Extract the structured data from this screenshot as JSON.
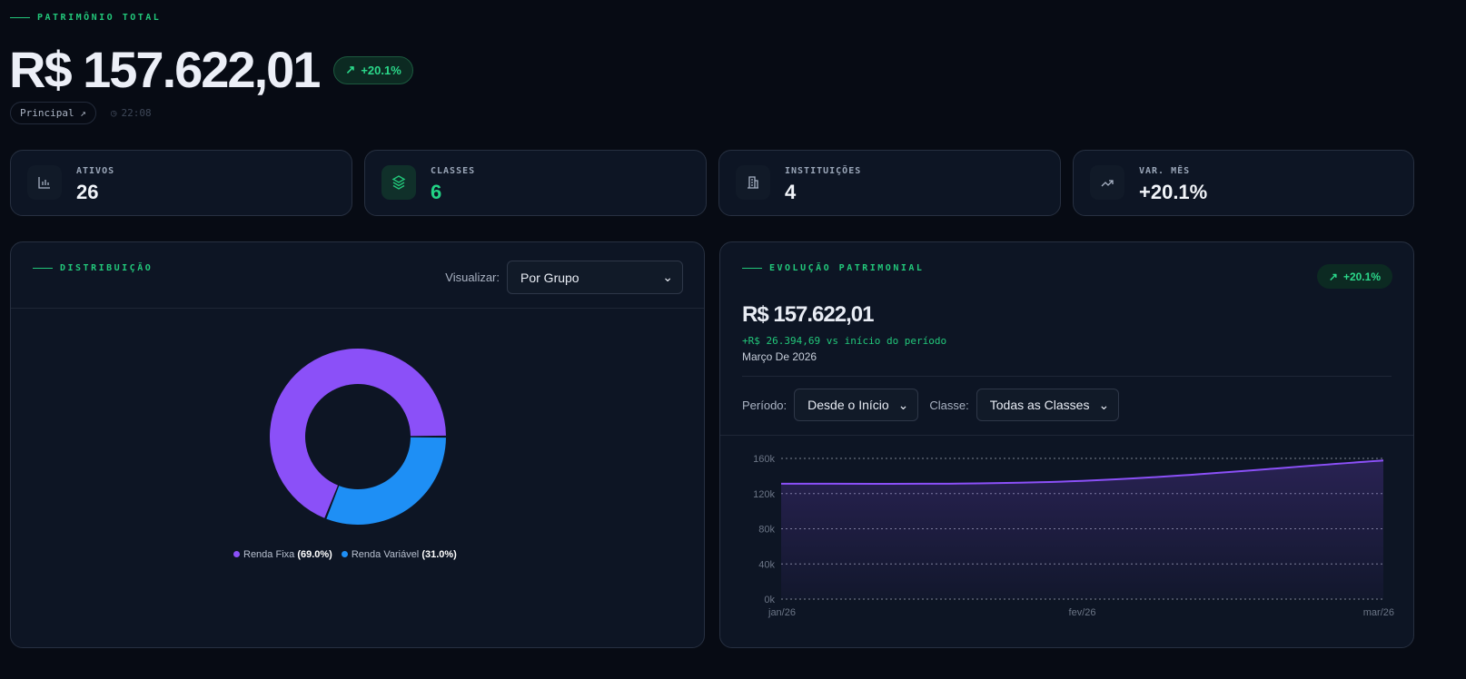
{
  "header": {
    "eyebrow": "PATRIMÔNIO TOTAL",
    "total": "R$ 157.622,01",
    "change": "+20.1%",
    "portfolio": "Principal ↗",
    "time": "22:08"
  },
  "stats": [
    {
      "label": "ATIVOS",
      "value": "26",
      "icon": "bar-chart-icon"
    },
    {
      "label": "CLASSES",
      "value": "6",
      "icon": "layers-icon"
    },
    {
      "label": "INSTITUIÇÕES",
      "value": "4",
      "icon": "building-icon"
    },
    {
      "label": "VAR. MÊS",
      "value": "+20.1%",
      "icon": "trending-up-icon"
    }
  ],
  "distribution": {
    "title": "DISTRIBUIÇÃO",
    "view_label": "Visualizar:",
    "view_value": "Por Grupo",
    "legend": [
      {
        "name": "Renda Fixa",
        "pct": "(69.0%)",
        "value": 69.0,
        "color": "#8b50f8"
      },
      {
        "name": "Renda Variável",
        "pct": "(31.0%)",
        "value": 31.0,
        "color": "#1e8ff5"
      }
    ]
  },
  "evolution": {
    "title": "EVOLUÇÃO PATRIMONIAL",
    "change": "+20.1%",
    "value": "R$ 157.622,01",
    "delta": "+R$ 26.394,69 vs início do período",
    "date": "Março De 2026",
    "period_label": "Período:",
    "period_value": "Desde o Início",
    "class_label": "Classe:",
    "class_value": "Todas as Classes"
  },
  "chart_data": {
    "type": "area",
    "x": [
      "jan/26",
      "fev/26",
      "mar/26"
    ],
    "values": [
      131227.32,
      134500,
      157622.01
    ],
    "yticks": [
      "0k",
      "40k",
      "80k",
      "120k",
      "160k"
    ],
    "ylim": [
      0,
      160000
    ],
    "grid": true,
    "color": "#8b50f8"
  },
  "colors": {
    "accent": "#22c77a",
    "purple": "#8b50f8",
    "blue": "#1e8ff5"
  }
}
